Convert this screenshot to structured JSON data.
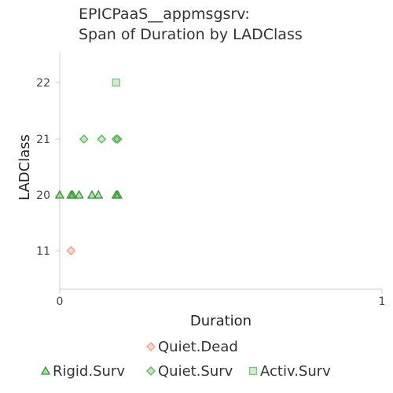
{
  "chart_data": {
    "type": "scatter",
    "title_lines": [
      "EPICPaaS__appmsgsrv:",
      "Span of Duration by LADClass"
    ],
    "xlabel": "Duration",
    "ylabel": "LADClass",
    "xlim": [
      0,
      1
    ],
    "x_ticks": [
      {
        "value": 0,
        "label": "0"
      },
      {
        "value": 1,
        "label": "1"
      }
    ],
    "y_categories": [
      "11",
      "20",
      "21",
      "22"
    ],
    "grid": false,
    "legend_rows": [
      [
        "Quiet.Dead"
      ],
      [
        "Rigid.Surv",
        "Quiet.Surv",
        "Activ.Surv"
      ]
    ],
    "series": [
      {
        "name": "Quiet.Dead",
        "marker": "diamond",
        "color": "#f4997c",
        "points": [
          {
            "x": 0.035,
            "y": "11"
          }
        ]
      },
      {
        "name": "Rigid.Surv",
        "marker": "triangle",
        "color": "#2e9a2e",
        "points": [
          {
            "x": 0.0,
            "y": "20"
          },
          {
            "x": 0.035,
            "y": "20"
          },
          {
            "x": 0.04,
            "y": "20"
          },
          {
            "x": 0.06,
            "y": "20"
          },
          {
            "x": 0.1,
            "y": "20"
          },
          {
            "x": 0.12,
            "y": "20"
          },
          {
            "x": 0.175,
            "y": "20"
          },
          {
            "x": 0.18,
            "y": "20"
          }
        ]
      },
      {
        "name": "Quiet.Surv",
        "marker": "diamond",
        "color": "#5bb85b",
        "points": [
          {
            "x": 0.075,
            "y": "21"
          },
          {
            "x": 0.13,
            "y": "21"
          },
          {
            "x": 0.175,
            "y": "21"
          },
          {
            "x": 0.18,
            "y": "21"
          }
        ]
      },
      {
        "name": "Activ.Surv",
        "marker": "square",
        "color": "#7cc47c",
        "points": [
          {
            "x": 0.175,
            "y": "22"
          }
        ]
      }
    ]
  }
}
